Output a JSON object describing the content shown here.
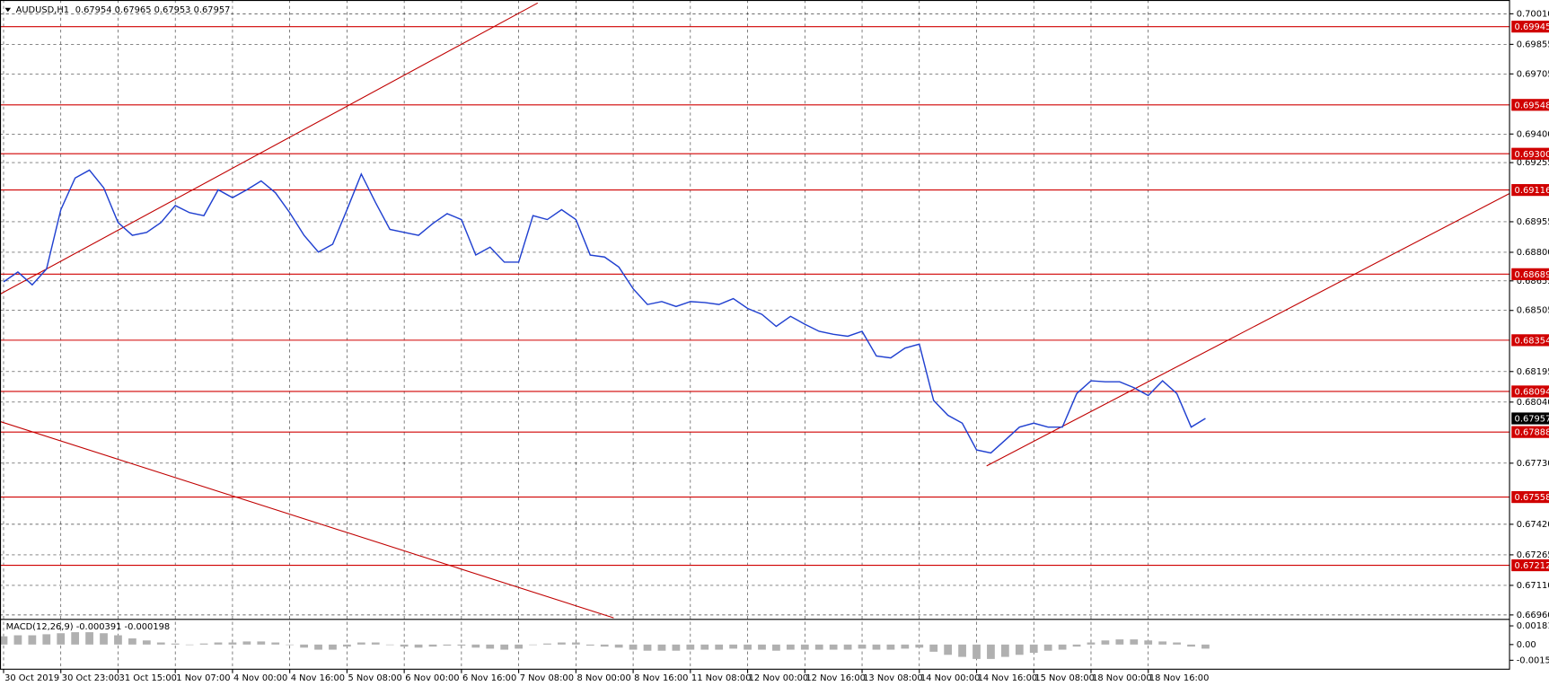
{
  "chart_data": [
    {
      "type": "line",
      "title": "AUDUSD,H1",
      "subtitle": "0.67954 0.67965 0.67953 0.67957",
      "color": "#2040d0",
      "x": [
        0,
        4,
        8,
        12,
        16,
        20,
        24,
        28,
        32,
        36,
        40,
        44,
        48,
        52,
        56,
        60,
        64,
        68,
        72,
        76,
        80,
        84,
        88,
        92,
        96,
        100,
        104,
        108,
        112,
        116,
        120,
        124,
        128,
        132,
        136,
        140,
        144,
        148,
        152,
        156,
        160,
        164,
        168,
        172,
        176,
        180,
        184,
        188,
        192,
        196,
        200,
        204,
        208,
        212,
        216,
        220,
        224,
        228,
        232,
        236,
        240,
        244,
        248,
        252,
        256,
        260,
        264,
        268,
        272,
        276,
        280,
        284,
        288,
        292,
        296,
        300,
        304,
        308,
        312,
        316,
        320,
        324,
        328,
        332,
        336
      ],
      "values": [
        0.6865,
        0.687,
        0.68635,
        0.68715,
        0.69016,
        0.69177,
        0.69217,
        0.69127,
        0.68951,
        0.68886,
        0.68901,
        0.68951,
        0.69037,
        0.69001,
        0.68986,
        0.69117,
        0.69077,
        0.69117,
        0.69162,
        0.69102,
        0.69001,
        0.68886,
        0.68801,
        0.68841,
        0.69016,
        0.69197,
        0.69052,
        0.68916,
        0.68901,
        0.68886,
        0.68946,
        0.68996,
        0.68966,
        0.68786,
        0.68826,
        0.6875,
        0.6875,
        0.68986,
        0.68966,
        0.69016,
        0.68966,
        0.68786,
        0.68776,
        0.68725,
        0.68615,
        0.68535,
        0.6855,
        0.68525,
        0.6855,
        0.68545,
        0.68535,
        0.68565,
        0.68515,
        0.68485,
        0.68424,
        0.68475,
        0.68435,
        0.68399,
        0.68384,
        0.68374,
        0.68399,
        0.68274,
        0.68264,
        0.68314,
        0.68334,
        0.68048,
        0.67973,
        0.67933,
        0.67797,
        0.67782,
        0.67847,
        0.67913,
        0.67933,
        0.67913,
        0.67913,
        0.68083,
        0.68148,
        0.68143,
        0.68143,
        0.68113,
        0.68073,
        0.68148,
        0.68083,
        0.67913,
        0.67957
      ],
      "xlim": [
        -1,
        421
      ],
      "xticks": [
        {
          "value": 0,
          "label": "30 Oct 2019"
        },
        {
          "value": 16,
          "label": "30 Oct 23:00"
        },
        {
          "value": 32,
          "label": "31 Oct 15:00"
        },
        {
          "value": 48,
          "label": "1 Nov 07:00"
        },
        {
          "value": 64,
          "label": "4 Nov 00:00"
        },
        {
          "value": 80,
          "label": "4 Nov 16:00"
        },
        {
          "value": 96,
          "label": "5 Nov 08:00"
        },
        {
          "value": 112,
          "label": "6 Nov 00:00"
        },
        {
          "value": 128,
          "label": "6 Nov 16:00"
        },
        {
          "value": 144,
          "label": "7 Nov 08:00"
        },
        {
          "value": 160,
          "label": "8 Nov 00:00"
        },
        {
          "value": 176,
          "label": "8 Nov 16:00"
        },
        {
          "value": 192,
          "label": "11 Nov 08:00"
        },
        {
          "value": 208,
          "label": "12 Nov 00:00"
        },
        {
          "value": 224,
          "label": "12 Nov 16:00"
        },
        {
          "value": 240,
          "label": "13 Nov 08:00"
        },
        {
          "value": 256,
          "label": "14 Nov 00:00"
        },
        {
          "value": 272,
          "label": "14 Nov 16:00"
        },
        {
          "value": 288,
          "label": "15 Nov 08:00"
        },
        {
          "value": 304,
          "label": "18 Nov 00:00"
        },
        {
          "value": 320,
          "label": "18 Nov 16:00"
        }
      ],
      "ylim": [
        0.6694,
        0.70065
      ],
      "yticks": [
        {
          "value": 0.7001,
          "label": "0.70010"
        },
        {
          "value": 0.69855,
          "label": "0.69855"
        },
        {
          "value": 0.69705,
          "label": "0.69705"
        },
        {
          "value": 0.694,
          "label": "0.69400"
        },
        {
          "value": 0.69255,
          "label": "0.69255"
        },
        {
          "value": 0.68955,
          "label": "0.68955"
        },
        {
          "value": 0.688,
          "label": "0.68800"
        },
        {
          "value": 0.68655,
          "label": "0.68655"
        },
        {
          "value": 0.68505,
          "label": "0.68505"
        },
        {
          "value": 0.68195,
          "label": "0.68195"
        },
        {
          "value": 0.6804,
          "label": "0.68040"
        },
        {
          "value": 0.6773,
          "label": "0.67730"
        },
        {
          "value": 0.6742,
          "label": "0.67420"
        },
        {
          "value": 0.67265,
          "label": "0.67265"
        },
        {
          "value": 0.6711,
          "label": "0.67110"
        },
        {
          "value": 0.6696,
          "label": "0.66960"
        }
      ],
      "levels": [
        0.69945,
        0.69548,
        {
          "value": 0.693,
          "label": "0.69300"
        },
        0.69116,
        0.68689,
        0.68354,
        0.68094,
        0.67888,
        0.67558,
        0.67212
      ],
      "level_color": "#d00000",
      "last": 0.67957,
      "grid": true
    },
    {
      "type": "bar",
      "title": "MACD(12,26,9) -0.000391 -0.000198",
      "color": "#b0b0b0",
      "values": [
        0.0008,
        0.0009,
        0.0009,
        0.001,
        0.0011,
        0.0012,
        0.0012,
        0.0011,
        0.0009,
        0.0006,
        0.0004,
        0.0002,
        0.0001,
        0.0,
        0.0001,
        0.0002,
        0.0002,
        0.0003,
        0.0003,
        0.0002,
        0.0,
        -0.0003,
        -0.0005,
        -0.0005,
        -0.0002,
        0.0002,
        0.0002,
        0.0,
        -0.0002,
        -0.0003,
        -0.0002,
        -0.0001,
        -0.0001,
        -0.0003,
        -0.0004,
        -0.0005,
        -0.0004,
        0.0,
        0.0001,
        0.0002,
        0.0002,
        -0.0001,
        -0.0002,
        -0.0003,
        -0.0005,
        -0.0006,
        -0.0006,
        -0.0006,
        -0.0005,
        -0.0005,
        -0.0005,
        -0.0004,
        -0.0005,
        -0.0005,
        -0.0006,
        -0.0005,
        -0.0005,
        -0.0005,
        -0.0005,
        -0.0005,
        -0.0004,
        -0.0005,
        -0.0005,
        -0.0004,
        -0.0003,
        -0.0007,
        -0.001,
        -0.0012,
        -0.0014,
        -0.0014,
        -0.0012,
        -0.001,
        -0.0008,
        -0.0006,
        -0.0005,
        -0.0002,
        0.0002,
        0.0004,
        0.0005,
        0.0005,
        0.0004,
        0.0003,
        0.0002,
        -0.0002,
        -0.0004
      ],
      "ylim": [
        -0.0024,
        0.0024
      ],
      "yticks": [
        0.001816,
        {
          "value": 0,
          "label": "0.00"
        },
        -0.00153
      ]
    }
  ]
}
